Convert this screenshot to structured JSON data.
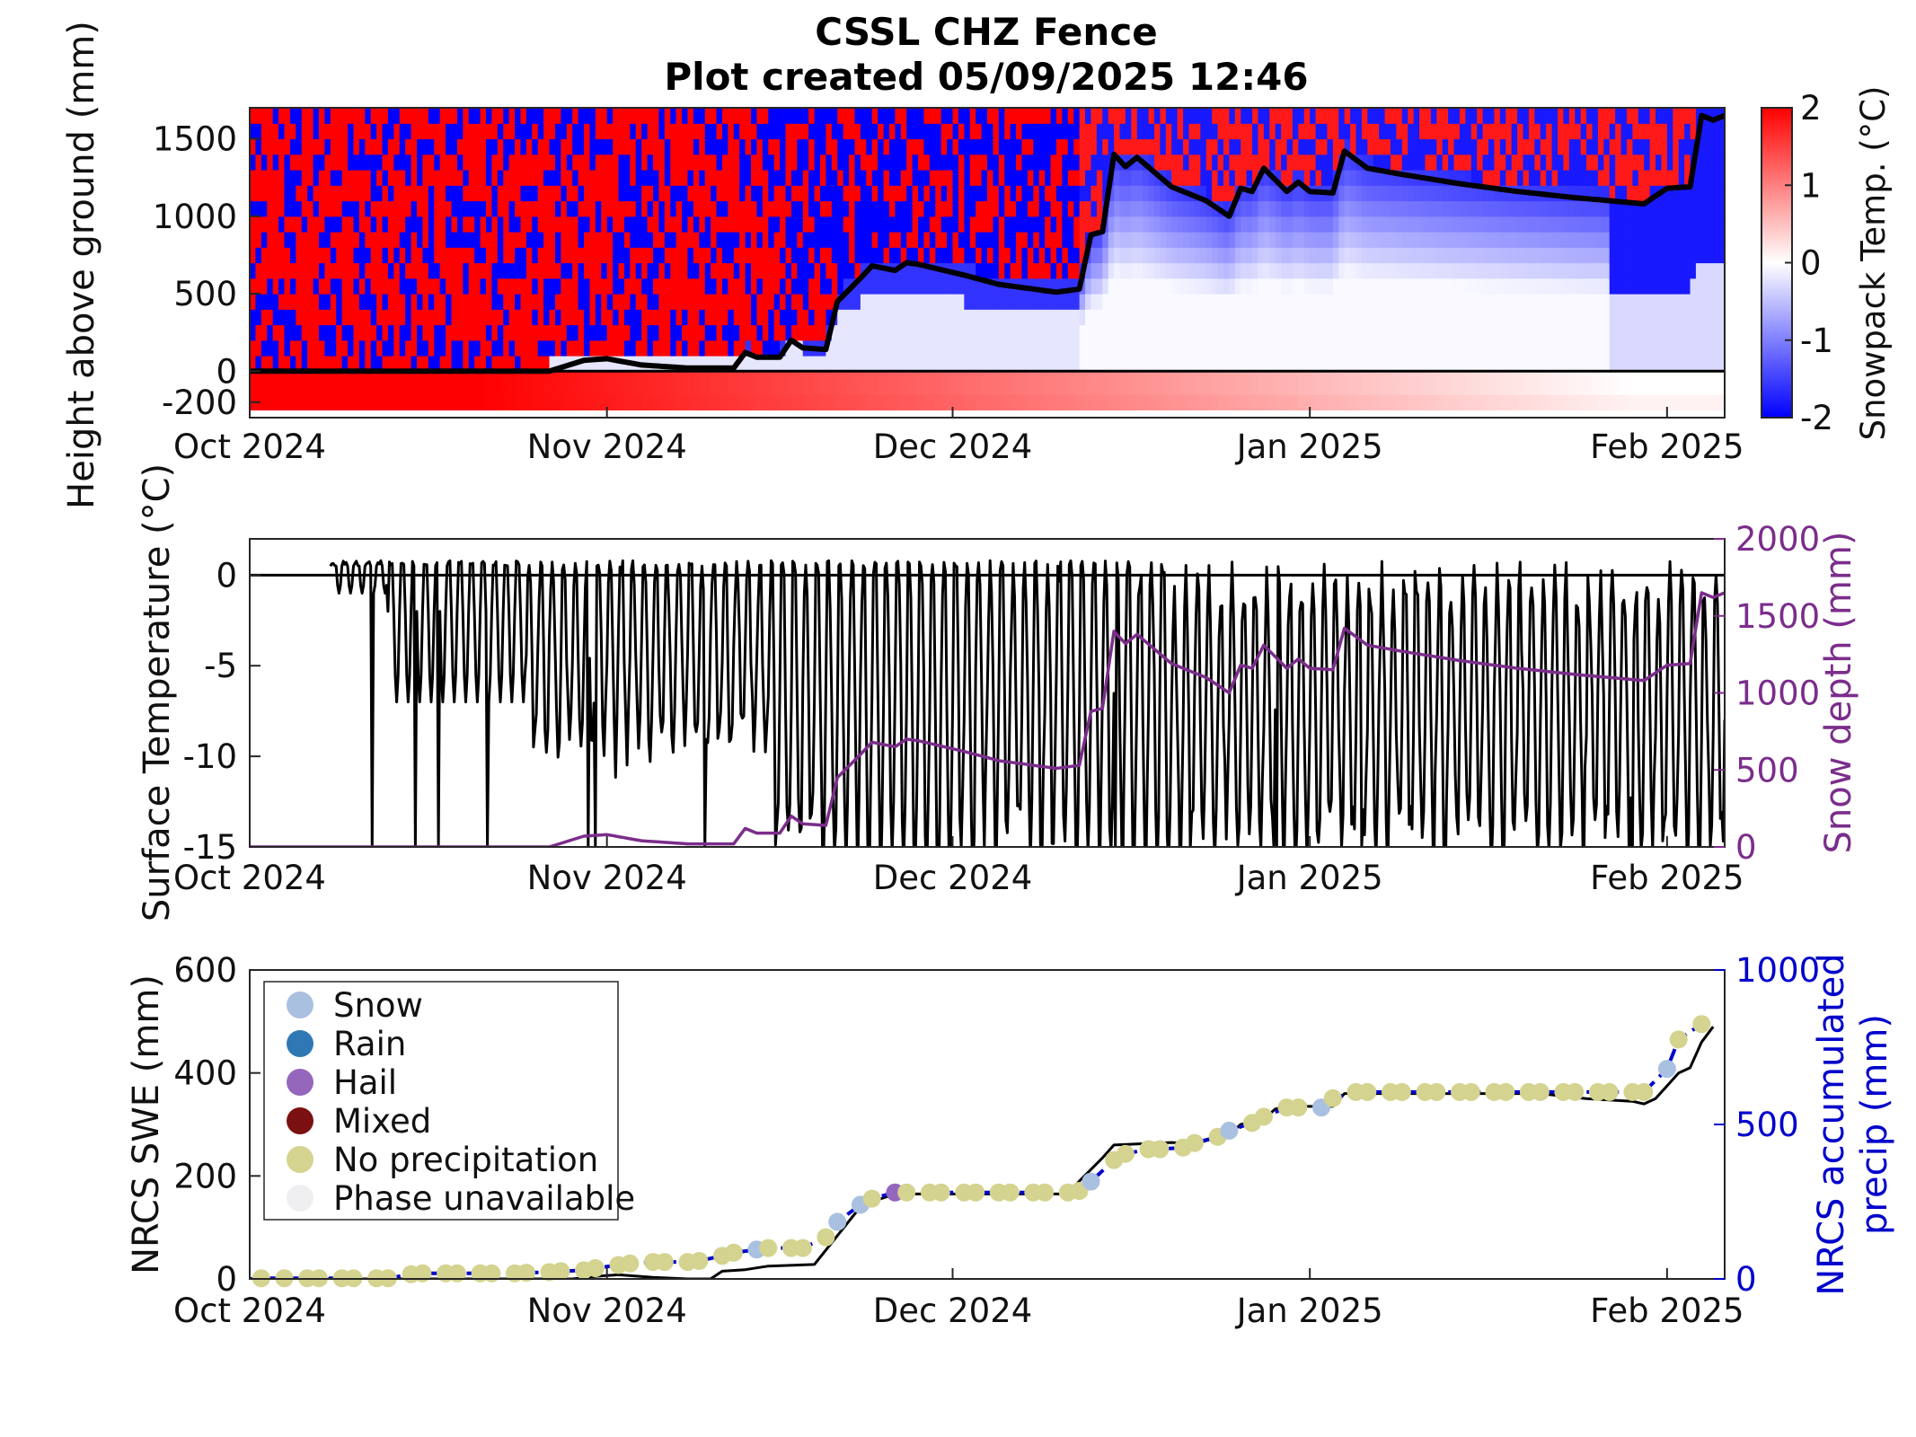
{
  "figure": {
    "title_line1": "CSSL CHZ Fence",
    "title_line2": "Plot created 05/09/2025 12:46"
  },
  "chart_data": [
    {
      "type": "heatmap",
      "name": "snowpack-temperature-profile",
      "ylabel": "Height above ground (mm)",
      "colorbar_label": "Snowpack Temp. (°C)",
      "colorbar_ticks": [
        "-2",
        "-1",
        "0",
        "1",
        "2"
      ],
      "clim": [
        -2,
        2
      ],
      "colormap": [
        "#0000ff",
        "#ffffff",
        "#ff0000"
      ],
      "x_ticks": [
        "Oct 2024",
        "Nov 2024",
        "Dec 2024",
        "Jan 2025",
        "Feb 2025"
      ],
      "x_tick_days": [
        0,
        31,
        61,
        92,
        123
      ],
      "x_range_days": [
        0,
        128
      ],
      "y_ticks": [
        "-200",
        "0",
        "500",
        "1000",
        "1500"
      ],
      "y_tick_values": [
        -200,
        0,
        500,
        1000,
        1500
      ],
      "ylim": [
        -300,
        1700
      ],
      "sensor_heights_mm": [
        -250,
        -150,
        -50,
        0,
        100,
        200,
        300,
        400,
        500,
        600,
        700,
        800,
        900,
        1000,
        1100,
        1200,
        1300,
        1400,
        1500,
        1600,
        1700
      ],
      "snow_depth_overlay_color": "#000000"
    },
    {
      "type": "line",
      "name": "surface-temperature-and-snow-depth",
      "ylabel": "Surface Temperature (°C)",
      "y2label": "Snow depth (mm)",
      "x_ticks": [
        "Oct 2024",
        "Nov 2024",
        "Dec 2024",
        "Jan 2025",
        "Feb 2025"
      ],
      "x_tick_days": [
        0,
        31,
        61,
        92,
        123
      ],
      "x_range_days": [
        0,
        128
      ],
      "y_ticks": [
        "-15",
        "-10",
        "-5",
        "0"
      ],
      "y_tick_values": [
        -15,
        -10,
        -5,
        0
      ],
      "ylim": [
        -15,
        2
      ],
      "y2_ticks": [
        "0",
        "500",
        "1000",
        "1500",
        "2000"
      ],
      "y2_tick_values": [
        0,
        500,
        1000,
        1500,
        2000
      ],
      "y2lim": [
        0,
        2000
      ],
      "series": [
        {
          "name": "Surface Temperature",
          "color": "#000000",
          "axis": "left"
        },
        {
          "name": "Snow depth",
          "color": "#7b2d8b",
          "axis": "right"
        }
      ]
    },
    {
      "type": "scatter",
      "name": "nrcs-swe-and-precip",
      "ylabel": "NRCS SWE (mm)",
      "y2label_line1": "NRCS accumulated",
      "y2label_line2": "precip (mm)",
      "x_ticks": [
        "Oct 2024",
        "Nov 2024",
        "Dec 2024",
        "Jan 2025",
        "Feb 2025"
      ],
      "x_tick_days": [
        0,
        31,
        61,
        92,
        123
      ],
      "x_range_days": [
        0,
        128
      ],
      "y_ticks": [
        "0",
        "200",
        "400",
        "600"
      ],
      "y_tick_values": [
        0,
        200,
        400,
        600
      ],
      "ylim": [
        0,
        600
      ],
      "y2_ticks": [
        "0",
        "500",
        "1000"
      ],
      "y2_tick_values": [
        0,
        500,
        1000
      ],
      "y2lim": [
        0,
        1000
      ],
      "legend": {
        "position": "upper-left",
        "entries": [
          {
            "label": "Snow",
            "color": "#a9c0e0"
          },
          {
            "label": "Rain",
            "color": "#2f78b4"
          },
          {
            "label": "Hail",
            "color": "#9467bd"
          },
          {
            "label": "Mixed",
            "color": "#7b1010"
          },
          {
            "label": "No precipitation",
            "color": "#d4d38f"
          },
          {
            "label": "Phase unavailable",
            "color": "#efeff1"
          }
        ]
      },
      "swe_line_color": "#000000",
      "precip_line_color": "#0000cc",
      "daily_precip_phase": [
        {
          "day": 1,
          "precip_mm": 2,
          "phase": "No precipitation"
        },
        {
          "day": 3,
          "precip_mm": 2,
          "phase": "No precipitation"
        },
        {
          "day": 5,
          "precip_mm": 2,
          "phase": "No precipitation"
        },
        {
          "day": 6,
          "precip_mm": 2,
          "phase": "No precipitation"
        },
        {
          "day": 8,
          "precip_mm": 2,
          "phase": "No precipitation"
        },
        {
          "day": 9,
          "precip_mm": 2,
          "phase": "No precipitation"
        },
        {
          "day": 11,
          "precip_mm": 2,
          "phase": "No precipitation"
        },
        {
          "day": 12,
          "precip_mm": 2,
          "phase": "No precipitation"
        },
        {
          "day": 14,
          "precip_mm": 15,
          "phase": "No precipitation"
        },
        {
          "day": 15,
          "precip_mm": 18,
          "phase": "No precipitation"
        },
        {
          "day": 17,
          "precip_mm": 18,
          "phase": "No precipitation"
        },
        {
          "day": 18,
          "precip_mm": 18,
          "phase": "No precipitation"
        },
        {
          "day": 20,
          "precip_mm": 18,
          "phase": "No precipitation"
        },
        {
          "day": 21,
          "precip_mm": 18,
          "phase": "No precipitation"
        },
        {
          "day": 23,
          "precip_mm": 18,
          "phase": "No precipitation"
        },
        {
          "day": 24,
          "precip_mm": 20,
          "phase": "No precipitation"
        },
        {
          "day": 26,
          "precip_mm": 22,
          "phase": "No precipitation"
        },
        {
          "day": 27,
          "precip_mm": 25,
          "phase": "No precipitation"
        },
        {
          "day": 29,
          "precip_mm": 28,
          "phase": "No precipitation"
        },
        {
          "day": 30,
          "precip_mm": 35,
          "phase": "No precipitation"
        },
        {
          "day": 32,
          "precip_mm": 45,
          "phase": "No precipitation"
        },
        {
          "day": 33,
          "precip_mm": 50,
          "phase": "No precipitation"
        },
        {
          "day": 35,
          "precip_mm": 55,
          "phase": "No precipitation"
        },
        {
          "day": 36,
          "precip_mm": 55,
          "phase": "No precipitation"
        },
        {
          "day": 38,
          "precip_mm": 55,
          "phase": "No precipitation"
        },
        {
          "day": 39,
          "precip_mm": 58,
          "phase": "No precipitation"
        },
        {
          "day": 41,
          "precip_mm": 75,
          "phase": "No precipitation"
        },
        {
          "day": 42,
          "precip_mm": 85,
          "phase": "No precipitation"
        },
        {
          "day": 44,
          "precip_mm": 95,
          "phase": "Snow"
        },
        {
          "day": 45,
          "precip_mm": 100,
          "phase": "No precipitation"
        },
        {
          "day": 47,
          "precip_mm": 100,
          "phase": "No precipitation"
        },
        {
          "day": 48,
          "precip_mm": 100,
          "phase": "No precipitation"
        },
        {
          "day": 50,
          "precip_mm": 135,
          "phase": "No precipitation"
        },
        {
          "day": 51,
          "precip_mm": 185,
          "phase": "Snow"
        },
        {
          "day": 53,
          "precip_mm": 240,
          "phase": "Snow"
        },
        {
          "day": 54,
          "precip_mm": 260,
          "phase": "No precipitation"
        },
        {
          "day": 56,
          "precip_mm": 280,
          "phase": "Hail"
        },
        {
          "day": 57,
          "precip_mm": 280,
          "phase": "No precipitation"
        },
        {
          "day": 59,
          "precip_mm": 280,
          "phase": "No precipitation"
        },
        {
          "day": 60,
          "precip_mm": 280,
          "phase": "No precipitation"
        },
        {
          "day": 62,
          "precip_mm": 280,
          "phase": "No precipitation"
        },
        {
          "day": 63,
          "precip_mm": 280,
          "phase": "No precipitation"
        },
        {
          "day": 65,
          "precip_mm": 280,
          "phase": "No precipitation"
        },
        {
          "day": 66,
          "precip_mm": 280,
          "phase": "No precipitation"
        },
        {
          "day": 68,
          "precip_mm": 280,
          "phase": "No precipitation"
        },
        {
          "day": 69,
          "precip_mm": 280,
          "phase": "No precipitation"
        },
        {
          "day": 71,
          "precip_mm": 280,
          "phase": "No precipitation"
        },
        {
          "day": 72,
          "precip_mm": 285,
          "phase": "No precipitation"
        },
        {
          "day": 73,
          "precip_mm": 315,
          "phase": "Snow"
        },
        {
          "day": 75,
          "precip_mm": 385,
          "phase": "No precipitation"
        },
        {
          "day": 76,
          "precip_mm": 405,
          "phase": "No precipitation"
        },
        {
          "day": 78,
          "precip_mm": 420,
          "phase": "No precipitation"
        },
        {
          "day": 79,
          "precip_mm": 420,
          "phase": "No precipitation"
        },
        {
          "day": 81,
          "precip_mm": 425,
          "phase": "No precipitation"
        },
        {
          "day": 82,
          "precip_mm": 440,
          "phase": "No precipitation"
        },
        {
          "day": 84,
          "precip_mm": 460,
          "phase": "No precipitation"
        },
        {
          "day": 85,
          "precip_mm": 480,
          "phase": "Snow"
        },
        {
          "day": 87,
          "precip_mm": 505,
          "phase": "No precipitation"
        },
        {
          "day": 88,
          "precip_mm": 525,
          "phase": "No precipitation"
        },
        {
          "day": 90,
          "precip_mm": 555,
          "phase": "No precipitation"
        },
        {
          "day": 91,
          "precip_mm": 555,
          "phase": "No precipitation"
        },
        {
          "day": 93,
          "precip_mm": 555,
          "phase": "Snow"
        },
        {
          "day": 94,
          "precip_mm": 585,
          "phase": "No precipitation"
        },
        {
          "day": 96,
          "precip_mm": 605,
          "phase": "No precipitation"
        },
        {
          "day": 97,
          "precip_mm": 605,
          "phase": "No precipitation"
        },
        {
          "day": 99,
          "precip_mm": 605,
          "phase": "No precipitation"
        },
        {
          "day": 100,
          "precip_mm": 605,
          "phase": "No precipitation"
        },
        {
          "day": 102,
          "precip_mm": 605,
          "phase": "No precipitation"
        },
        {
          "day": 103,
          "precip_mm": 605,
          "phase": "No precipitation"
        },
        {
          "day": 105,
          "precip_mm": 605,
          "phase": "No precipitation"
        },
        {
          "day": 106,
          "precip_mm": 605,
          "phase": "No precipitation"
        },
        {
          "day": 108,
          "precip_mm": 605,
          "phase": "No precipitation"
        },
        {
          "day": 109,
          "precip_mm": 605,
          "phase": "No precipitation"
        },
        {
          "day": 111,
          "precip_mm": 605,
          "phase": "No precipitation"
        },
        {
          "day": 112,
          "precip_mm": 605,
          "phase": "No precipitation"
        },
        {
          "day": 114,
          "precip_mm": 605,
          "phase": "No precipitation"
        },
        {
          "day": 115,
          "precip_mm": 605,
          "phase": "No precipitation"
        },
        {
          "day": 117,
          "precip_mm": 605,
          "phase": "No precipitation"
        },
        {
          "day": 118,
          "precip_mm": 605,
          "phase": "No precipitation"
        },
        {
          "day": 120,
          "precip_mm": 605,
          "phase": "No precipitation"
        },
        {
          "day": 121,
          "precip_mm": 605,
          "phase": "No precipitation"
        },
        {
          "day": 123,
          "precip_mm": 680,
          "phase": "Snow"
        },
        {
          "day": 124,
          "precip_mm": 775,
          "phase": "No precipitation"
        },
        {
          "day": 126,
          "precip_mm": 825,
          "phase": "No precipitation"
        }
      ],
      "swe_mm": [
        {
          "day": 0,
          "swe_mm": 0
        },
        {
          "day": 28,
          "swe_mm": 0
        },
        {
          "day": 30,
          "swe_mm": 5
        },
        {
          "day": 32,
          "swe_mm": 8
        },
        {
          "day": 35,
          "swe_mm": 3
        },
        {
          "day": 38,
          "swe_mm": 0
        },
        {
          "day": 40,
          "swe_mm": 0
        },
        {
          "day": 41,
          "swe_mm": 15
        },
        {
          "day": 43,
          "swe_mm": 18
        },
        {
          "day": 45,
          "swe_mm": 25
        },
        {
          "day": 49,
          "swe_mm": 28
        },
        {
          "day": 53,
          "swe_mm": 140
        },
        {
          "day": 54,
          "swe_mm": 150
        },
        {
          "day": 56,
          "swe_mm": 165
        },
        {
          "day": 71,
          "swe_mm": 165
        },
        {
          "day": 72,
          "swe_mm": 190
        },
        {
          "day": 74,
          "swe_mm": 235
        },
        {
          "day": 75,
          "swe_mm": 260
        },
        {
          "day": 80,
          "swe_mm": 265
        },
        {
          "day": 82,
          "swe_mm": 262
        },
        {
          "day": 84,
          "swe_mm": 275
        },
        {
          "day": 85,
          "swe_mm": 280
        },
        {
          "day": 86,
          "swe_mm": 300
        },
        {
          "day": 88,
          "swe_mm": 310
        },
        {
          "day": 89,
          "swe_mm": 330
        },
        {
          "day": 90,
          "swe_mm": 335
        },
        {
          "day": 94,
          "swe_mm": 335
        },
        {
          "day": 95,
          "swe_mm": 360
        },
        {
          "day": 112,
          "swe_mm": 360
        },
        {
          "day": 116,
          "swe_mm": 350
        },
        {
          "day": 120,
          "swe_mm": 345
        },
        {
          "day": 121,
          "swe_mm": 340
        },
        {
          "day": 122,
          "swe_mm": 350
        },
        {
          "day": 123,
          "swe_mm": 375
        },
        {
          "day": 124,
          "swe_mm": 400
        },
        {
          "day": 125,
          "swe_mm": 410
        },
        {
          "day": 126,
          "swe_mm": 460
        },
        {
          "day": 127,
          "swe_mm": 490
        }
      ]
    }
  ]
}
